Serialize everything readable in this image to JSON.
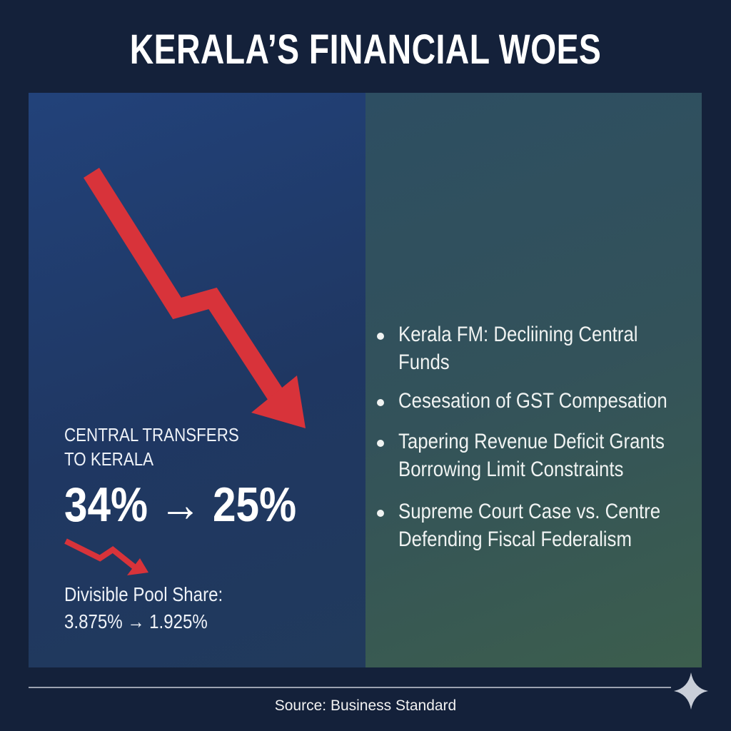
{
  "header": {
    "title": "KERALA’S FINANCIAL WOES"
  },
  "left_panel": {
    "heading_lines": [
      "CENTRAL TRANSFERS",
      "TO KERALA"
    ],
    "headline_figure": "34% → 25%",
    "detail_label": "Divisible Pool Share:",
    "detail_figure": "3.875% → 1.925%"
  },
  "bullets": [
    [
      "Kerala FM: Decliining Central",
      "Funds"
    ],
    [
      "Cesesation of GST Compesation"
    ],
    [
      "Tapering Revenue Deficit Grants",
      "Borrowing Limit Constraints"
    ],
    [
      "Supreme Court Case vs. Centre",
      "Defending Fiscal Federalism"
    ]
  ],
  "footer": {
    "source": "Source: Business Standard"
  }
}
